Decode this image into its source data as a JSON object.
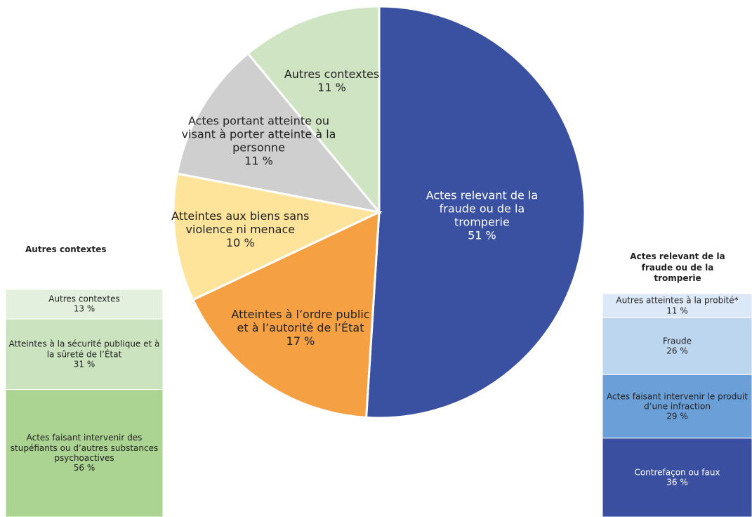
{
  "chart_data": [
    {
      "type": "pie",
      "categories": [
        "Actes relevant de la fraude ou de la tromperie",
        "Atteintes à l’ordre public et à l’autorité de l’État",
        "Atteintes aux biens sans violence ni menace",
        "Actes portant atteinte ou visant à porter atteinte à la personne",
        "Autres contextes"
      ],
      "values": [
        51,
        17,
        10,
        11,
        11
      ],
      "value_labels": [
        "51 %",
        "17 %",
        "10 %",
        "11 %",
        "11 %"
      ],
      "colors": [
        "#3a50a0",
        "#f4a043",
        "#fde49a",
        "#cfcfcf",
        "#cfe4c2"
      ]
    },
    {
      "type": "stacked-bar",
      "title": "Autres contextes",
      "series": [
        {
          "name": "Autres contextes",
          "color": "#e3f0dd",
          "values": [
            13
          ],
          "value_labels": [
            "13 %"
          ]
        },
        {
          "name": "Atteintes à la sécurité publique et à la sûreté de l’État",
          "color": "#cbe3bf",
          "values": [
            31
          ],
          "value_labels": [
            "31 %"
          ]
        },
        {
          "name": "Actes faisant intervenir des stupéfiants ou d’autres substances psychoactives",
          "color": "#abd391",
          "values": [
            56
          ],
          "value_labels": [
            "56 %"
          ]
        }
      ]
    },
    {
      "type": "stacked-bar",
      "title": "Actes relevant de la fraude ou de la tromperie",
      "series": [
        {
          "name": "Autres atteintes à la probité*",
          "color": "#dce8f7",
          "values": [
            11
          ],
          "value_labels": [
            "11 %"
          ]
        },
        {
          "name": "Fraude",
          "color": "#bdd6ef",
          "values": [
            26
          ],
          "value_labels": [
            "26 %"
          ]
        },
        {
          "name": "Actes faisant intervenir le produit d’une infraction",
          "color": "#6b9fd8",
          "values": [
            29
          ],
          "value_labels": [
            "29 %"
          ]
        },
        {
          "name": "Contrefaçon ou faux",
          "color": "#3a4fa0",
          "values": [
            36
          ],
          "value_labels": [
            "36 %"
          ]
        }
      ]
    }
  ]
}
